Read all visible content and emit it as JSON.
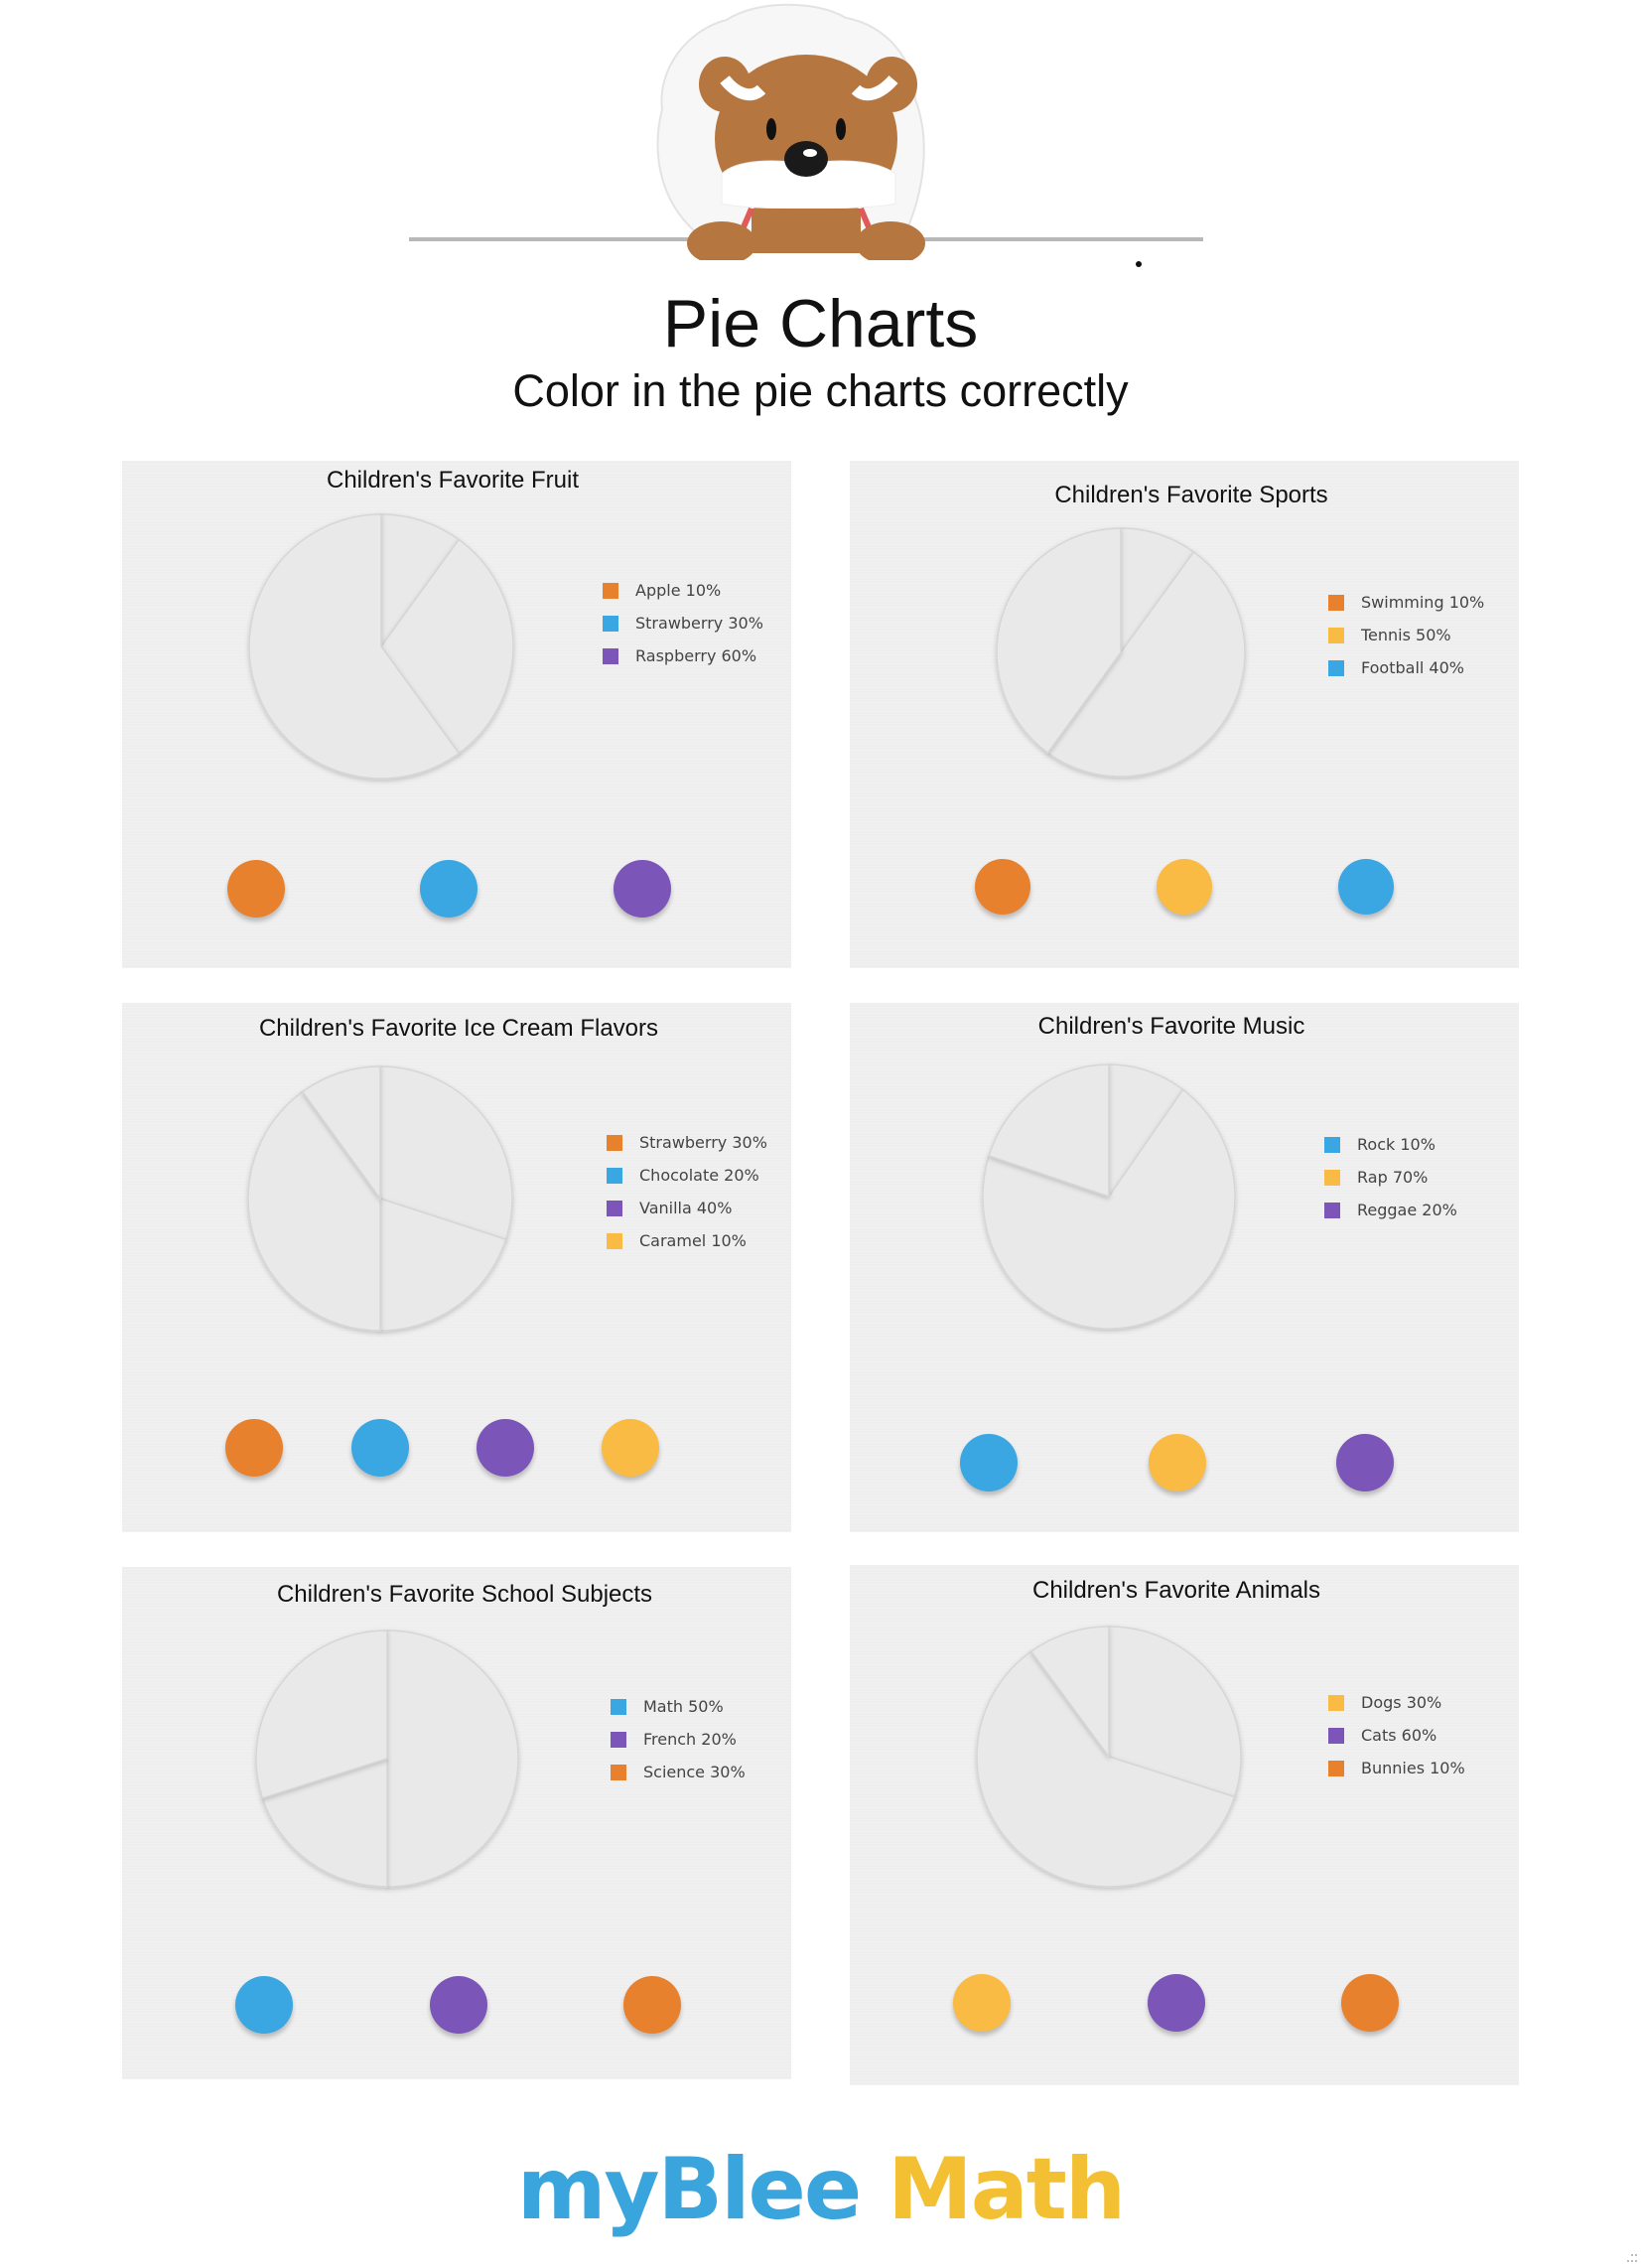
{
  "page": {
    "title": "Pie Charts",
    "subtitle": "Color in the pie charts correctly",
    "logo": {
      "part1": "myBlee",
      "part2": "Math"
    },
    "colors": {
      "orange": "#e8812e",
      "blue": "#3aa7e2",
      "purple": "#7b56b8",
      "yellow": "#f9bb43",
      "pie_fill": "#e9e9e9",
      "card_bg": "#eeeeee"
    }
  },
  "chart_data": [
    {
      "type": "pie",
      "title": "Children's Favorite Fruit",
      "categories": [
        "Apple",
        "Strawberry",
        "Raspberry"
      ],
      "values": [
        10,
        30,
        60
      ],
      "legend": [
        "Apple 10%",
        "Strawberry 30%",
        "Raspberry 60%"
      ],
      "colors": [
        "#e8812e",
        "#3aa7e2",
        "#7b56b8"
      ],
      "color_dots": [
        "#e8812e",
        "#3aa7e2",
        "#7b56b8"
      ],
      "legend_position": "right",
      "slices_filled": false
    },
    {
      "type": "pie",
      "title": "Children's Favorite Sports",
      "categories": [
        "Swimming",
        "Tennis",
        "Football"
      ],
      "values": [
        10,
        50,
        40
      ],
      "legend": [
        "Swimming 10%",
        "Tennis 50%",
        "Football 40%"
      ],
      "colors": [
        "#e8812e",
        "#f9bb43",
        "#3aa7e2"
      ],
      "color_dots": [
        "#e8812e",
        "#f9bb43",
        "#3aa7e2"
      ],
      "legend_position": "right",
      "slices_filled": false
    },
    {
      "type": "pie",
      "title": "Children's Favorite Ice Cream Flavors",
      "categories": [
        "Strawberry",
        "Chocolate",
        "Vanilla",
        "Caramel"
      ],
      "values": [
        30,
        20,
        40,
        10
      ],
      "legend": [
        "Strawberry 30%",
        "Chocolate 20%",
        "Vanilla 40%",
        "Caramel 10%"
      ],
      "colors": [
        "#e8812e",
        "#3aa7e2",
        "#7b56b8",
        "#f9bb43"
      ],
      "color_dots": [
        "#e8812e",
        "#3aa7e2",
        "#7b56b8",
        "#f9bb43"
      ],
      "legend_position": "right",
      "slices_filled": false
    },
    {
      "type": "pie",
      "title": "Children's Favorite Music",
      "categories": [
        "Rock",
        "Rap",
        "Reggae"
      ],
      "values": [
        10,
        70,
        20
      ],
      "legend": [
        "Rock 10%",
        "Rap 70%",
        "Reggae 20%"
      ],
      "colors": [
        "#3aa7e2",
        "#f9bb43",
        "#7b56b8"
      ],
      "color_dots": [
        "#3aa7e2",
        "#f9bb43",
        "#7b56b8"
      ],
      "legend_position": "right",
      "slices_filled": false
    },
    {
      "type": "pie",
      "title": "Children's Favorite School Subjects",
      "categories": [
        "Math",
        "French",
        "Science"
      ],
      "values": [
        50,
        20,
        30
      ],
      "legend": [
        "Math 50%",
        "French 20%",
        "Science 30%"
      ],
      "colors": [
        "#3aa7e2",
        "#7b56b8",
        "#e8812e"
      ],
      "color_dots": [
        "#3aa7e2",
        "#7b56b8",
        "#e8812e"
      ],
      "legend_position": "right",
      "slices_filled": false
    },
    {
      "type": "pie",
      "title": "Children's Favorite Animals",
      "categories": [
        "Dogs",
        "Cats",
        "Bunnies"
      ],
      "values": [
        30,
        60,
        10
      ],
      "legend": [
        "Dogs 30%",
        "Cats 60%",
        "Bunnies 10%"
      ],
      "colors": [
        "#f9bb43",
        "#7b56b8",
        "#e8812e"
      ],
      "color_dots": [
        "#f9bb43",
        "#7b56b8",
        "#e8812e"
      ],
      "legend_position": "right",
      "slices_filled": false
    }
  ]
}
